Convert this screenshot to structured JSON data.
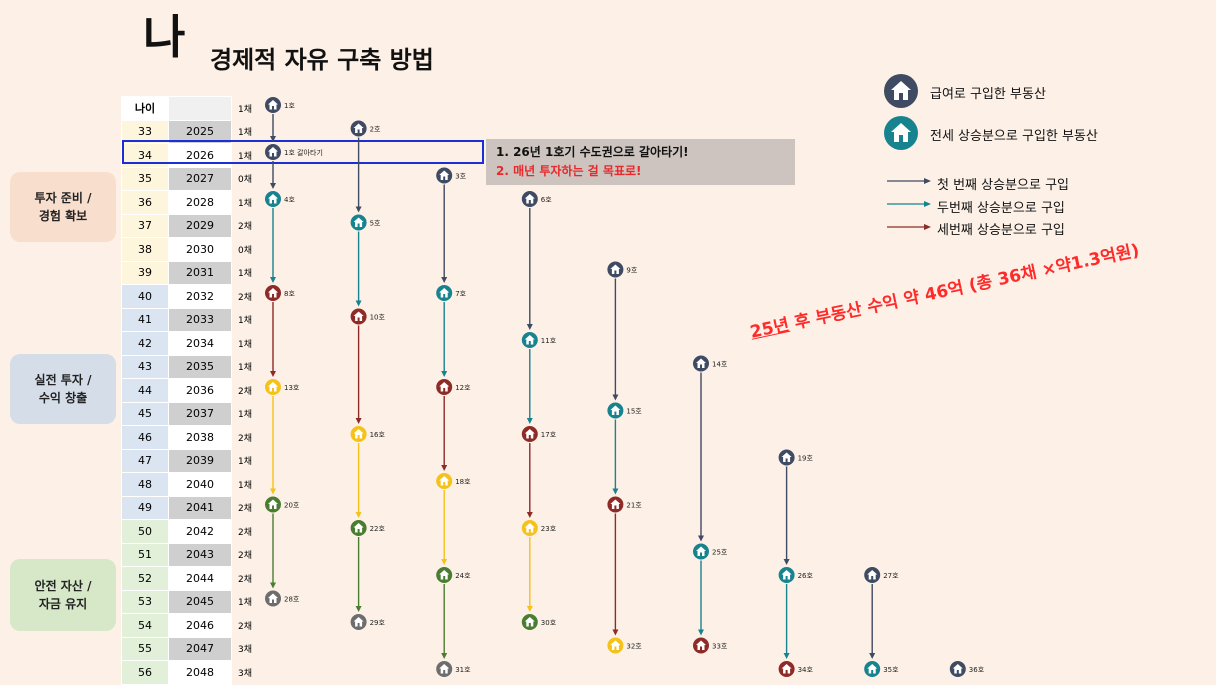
{
  "title": {
    "big": "나",
    "sub": "경제적 자유 구축 방법"
  },
  "table": {
    "header": [
      "나이",
      ""
    ],
    "rows": [
      {
        "age": "",
        "year": "",
        "units": "1채"
      },
      {
        "age": "33",
        "year": "2025",
        "units": "1채"
      },
      {
        "age": "34",
        "year": "2026",
        "units": "1채"
      },
      {
        "age": "35",
        "year": "2027",
        "units": "0채"
      },
      {
        "age": "36",
        "year": "2028",
        "units": "1채"
      },
      {
        "age": "37",
        "year": "2029",
        "units": "2채"
      },
      {
        "age": "38",
        "year": "2030",
        "units": "0채"
      },
      {
        "age": "39",
        "year": "2031",
        "units": "1채"
      },
      {
        "age": "40",
        "year": "2032",
        "units": "2채"
      },
      {
        "age": "41",
        "year": "2033",
        "units": "1채"
      },
      {
        "age": "42",
        "year": "2034",
        "units": "1채"
      },
      {
        "age": "43",
        "year": "2035",
        "units": "1채"
      },
      {
        "age": "44",
        "year": "2036",
        "units": "2채"
      },
      {
        "age": "45",
        "year": "2037",
        "units": "1채"
      },
      {
        "age": "46",
        "year": "2038",
        "units": "2채"
      },
      {
        "age": "47",
        "year": "2039",
        "units": "1채"
      },
      {
        "age": "48",
        "year": "2040",
        "units": "1채"
      },
      {
        "age": "49",
        "year": "2041",
        "units": "2채"
      },
      {
        "age": "50",
        "year": "2042",
        "units": "2채"
      },
      {
        "age": "51",
        "year": "2043",
        "units": "2채"
      },
      {
        "age": "52",
        "year": "2044",
        "units": "2채"
      },
      {
        "age": "53",
        "year": "2045",
        "units": "1채"
      },
      {
        "age": "54",
        "year": "2046",
        "units": "2채"
      },
      {
        "age": "55",
        "year": "2047",
        "units": "3채"
      },
      {
        "age": "56",
        "year": "2048",
        "units": "3채"
      }
    ]
  },
  "phases": [
    {
      "label": "투자 준비 /\n경험 확보"
    },
    {
      "label": "실전 투자 /\n수익 창출"
    },
    {
      "label": "안전 자산 /\n자금 유지"
    }
  ],
  "note": {
    "line1": "1. 26년 1호기 수도권으로 갈아타기!",
    "line2": "2. 매년 투자하는 걸 목표로!"
  },
  "legend": {
    "salary": "급여로 구입한 부동산",
    "jeonse": "전세 상승분으로 구입한 부동산",
    "first": "첫 번째 상승분으로 구입",
    "second": "두번째 상승분으로 구입",
    "third": "세번째 상승분으로 구입"
  },
  "slogan": {
    "part1": "25년",
    "part2": " 후 부동산 수익 약 46억 (총 36채 ×약1.3억원)"
  },
  "colors": {
    "navy": "#3f4a63",
    "teal": "#17838f",
    "maroon": "#8e2b27",
    "yellow": "#f5c21a",
    "green": "#4a7d32",
    "gray": "#6d6d6d"
  },
  "houses": [
    {
      "label": "1호",
      "col": 0,
      "row": 0,
      "color": "navy"
    },
    {
      "label": "2호",
      "col": 1,
      "row": 1,
      "color": "navy"
    },
    {
      "label": "1호 갈아타기",
      "col": 0,
      "row": 2,
      "color": "navy"
    },
    {
      "label": "3호",
      "col": 2,
      "row": 3,
      "color": "navy"
    },
    {
      "label": "4호",
      "col": 0,
      "row": 4,
      "color": "teal"
    },
    {
      "label": "5호",
      "col": 1,
      "row": 5,
      "color": "teal"
    },
    {
      "label": "6호",
      "col": 3,
      "row": 4,
      "color": "navy"
    },
    {
      "label": "7호",
      "col": 2,
      "row": 8,
      "color": "teal"
    },
    {
      "label": "8호",
      "col": 0,
      "row": 8,
      "color": "maroon"
    },
    {
      "label": "9호",
      "col": 4,
      "row": 7,
      "color": "navy"
    },
    {
      "label": "10호",
      "col": 1,
      "row": 9,
      "color": "maroon"
    },
    {
      "label": "11호",
      "col": 3,
      "row": 10,
      "color": "teal"
    },
    {
      "label": "12호",
      "col": 2,
      "row": 12,
      "color": "maroon"
    },
    {
      "label": "13호",
      "col": 0,
      "row": 12,
      "color": "yellow"
    },
    {
      "label": "14호",
      "col": 5,
      "row": 11,
      "color": "navy"
    },
    {
      "label": "15호",
      "col": 4,
      "row": 13,
      "color": "teal"
    },
    {
      "label": "16호",
      "col": 1,
      "row": 14,
      "color": "yellow"
    },
    {
      "label": "17호",
      "col": 3,
      "row": 14,
      "color": "maroon"
    },
    {
      "label": "18호",
      "col": 2,
      "row": 16,
      "color": "yellow"
    },
    {
      "label": "19호",
      "col": 6,
      "row": 15,
      "color": "navy"
    },
    {
      "label": "20호",
      "col": 0,
      "row": 17,
      "color": "green"
    },
    {
      "label": "21호",
      "col": 4,
      "row": 17,
      "color": "maroon"
    },
    {
      "label": "22호",
      "col": 1,
      "row": 18,
      "color": "green"
    },
    {
      "label": "23호",
      "col": 3,
      "row": 18,
      "color": "yellow"
    },
    {
      "label": "24호",
      "col": 2,
      "row": 20,
      "color": "green"
    },
    {
      "label": "25호",
      "col": 5,
      "row": 19,
      "color": "teal"
    },
    {
      "label": "26호",
      "col": 6,
      "row": 20,
      "color": "teal"
    },
    {
      "label": "27호",
      "col": 7,
      "row": 20,
      "color": "navy"
    },
    {
      "label": "28호",
      "col": 0,
      "row": 21,
      "color": "gray"
    },
    {
      "label": "29호",
      "col": 1,
      "row": 22,
      "color": "gray"
    },
    {
      "label": "30호",
      "col": 3,
      "row": 22,
      "color": "green"
    },
    {
      "label": "31호",
      "col": 2,
      "row": 24,
      "color": "gray"
    },
    {
      "label": "32호",
      "col": 4,
      "row": 23,
      "color": "yellow"
    },
    {
      "label": "33호",
      "col": 5,
      "row": 23,
      "color": "maroon"
    },
    {
      "label": "34호",
      "col": 6,
      "row": 24,
      "color": "maroon"
    },
    {
      "label": "35호",
      "col": 7,
      "row": 24,
      "color": "teal"
    },
    {
      "label": "36호",
      "col": 8,
      "row": 24,
      "color": "navy"
    }
  ],
  "arrows": [
    {
      "col": 0,
      "from": 0,
      "to": 2,
      "color": "navy"
    },
    {
      "col": 0,
      "from": 2,
      "to": 4,
      "color": "navy"
    },
    {
      "col": 0,
      "from": 4,
      "to": 8,
      "color": "teal"
    },
    {
      "col": 0,
      "from": 8,
      "to": 12,
      "color": "maroon"
    },
    {
      "col": 0,
      "from": 12,
      "to": 17,
      "color": "yellow"
    },
    {
      "col": 0,
      "from": 17,
      "to": 21,
      "color": "green"
    },
    {
      "col": 1,
      "from": 1,
      "to": 5,
      "color": "navy"
    },
    {
      "col": 1,
      "from": 5,
      "to": 9,
      "color": "teal"
    },
    {
      "col": 1,
      "from": 9,
      "to": 14,
      "color": "maroon"
    },
    {
      "col": 1,
      "from": 14,
      "to": 18,
      "color": "yellow"
    },
    {
      "col": 1,
      "from": 18,
      "to": 22,
      "color": "green"
    },
    {
      "col": 2,
      "from": 3,
      "to": 8,
      "color": "navy"
    },
    {
      "col": 2,
      "from": 8,
      "to": 12,
      "color": "teal"
    },
    {
      "col": 2,
      "from": 12,
      "to": 16,
      "color": "maroon"
    },
    {
      "col": 2,
      "from": 16,
      "to": 20,
      "color": "yellow"
    },
    {
      "col": 2,
      "from": 20,
      "to": 24,
      "color": "green"
    },
    {
      "col": 3,
      "from": 4,
      "to": 10,
      "color": "navy"
    },
    {
      "col": 3,
      "from": 10,
      "to": 14,
      "color": "teal"
    },
    {
      "col": 3,
      "from": 14,
      "to": 18,
      "color": "maroon"
    },
    {
      "col": 3,
      "from": 18,
      "to": 22,
      "color": "yellow"
    },
    {
      "col": 4,
      "from": 7,
      "to": 13,
      "color": "navy"
    },
    {
      "col": 4,
      "from": 13,
      "to": 17,
      "color": "teal"
    },
    {
      "col": 4,
      "from": 17,
      "to": 23,
      "color": "maroon"
    },
    {
      "col": 5,
      "from": 11,
      "to": 19,
      "color": "navy"
    },
    {
      "col": 5,
      "from": 19,
      "to": 23,
      "color": "teal"
    },
    {
      "col": 6,
      "from": 15,
      "to": 20,
      "color": "navy"
    },
    {
      "col": 6,
      "from": 20,
      "to": 24,
      "color": "teal"
    },
    {
      "col": 7,
      "from": 20,
      "to": 24,
      "color": "navy"
    }
  ]
}
